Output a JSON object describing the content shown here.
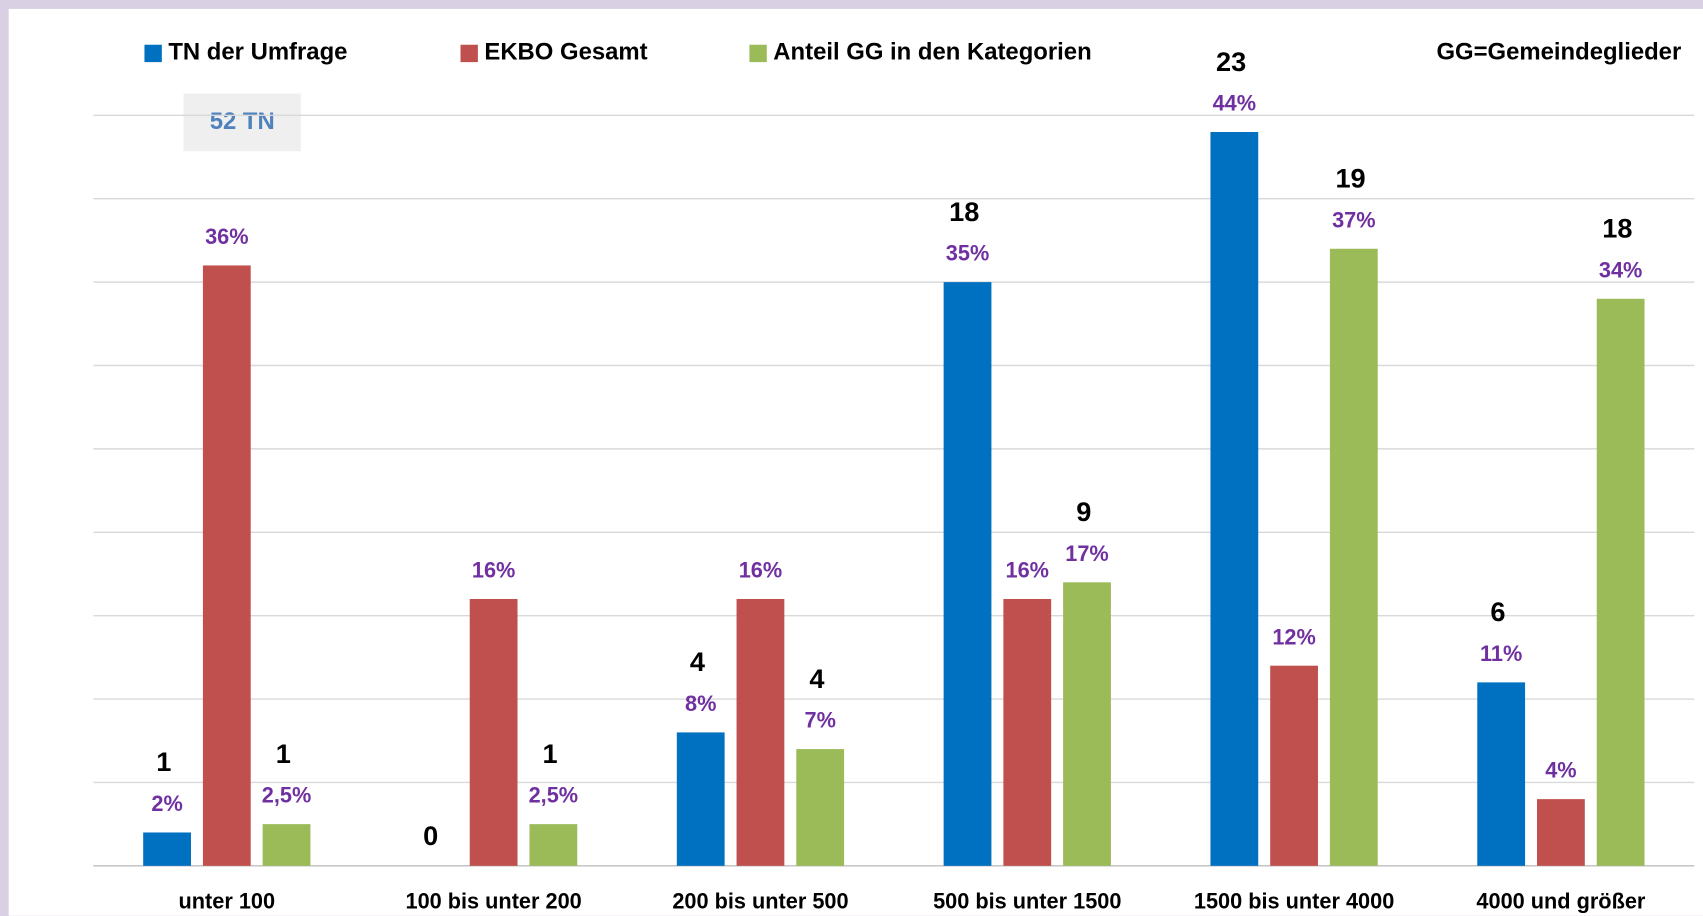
{
  "chart_data": {
    "type": "bar",
    "annotations": [
      "GG=Gemeindeglieder",
      "52 TN"
    ],
    "categories": [
      "unter 100",
      "100 bis unter 200",
      "200 bis unter 500",
      "500 bis unter 1500",
      "1500 bis unter 4000",
      "4000 und größer"
    ],
    "series": [
      {
        "name": "TN der Umfrage",
        "color": "#0070c0",
        "values": [
          2,
          0,
          8,
          35,
          44,
          11
        ],
        "value_labels": [
          "2%",
          null,
          "8%",
          "35%",
          "44%",
          "11%"
        ],
        "counts": [
          1,
          0,
          4,
          18,
          23,
          6
        ]
      },
      {
        "name": "EKBO Gesamt",
        "color": "#c0504d",
        "values": [
          36,
          16,
          16,
          16,
          12,
          4
        ],
        "value_labels": [
          "36%",
          "16%",
          "16%",
          "16%",
          "12%",
          "4%"
        ]
      },
      {
        "name": "Anteil GG in den Kategorien",
        "color": "#9bbb59",
        "values": [
          2.5,
          2.5,
          7,
          17,
          37,
          34
        ],
        "value_labels": [
          "2,5%",
          "2,5%",
          "7%",
          "17%",
          "37%",
          "34%"
        ],
        "counts": [
          1,
          1,
          4,
          9,
          19,
          18
        ]
      }
    ],
    "ylim": [
      0,
      45
    ],
    "yticks": [
      0,
      5,
      10,
      15,
      20,
      25,
      30,
      35,
      40,
      45
    ],
    "grid": true
  }
}
